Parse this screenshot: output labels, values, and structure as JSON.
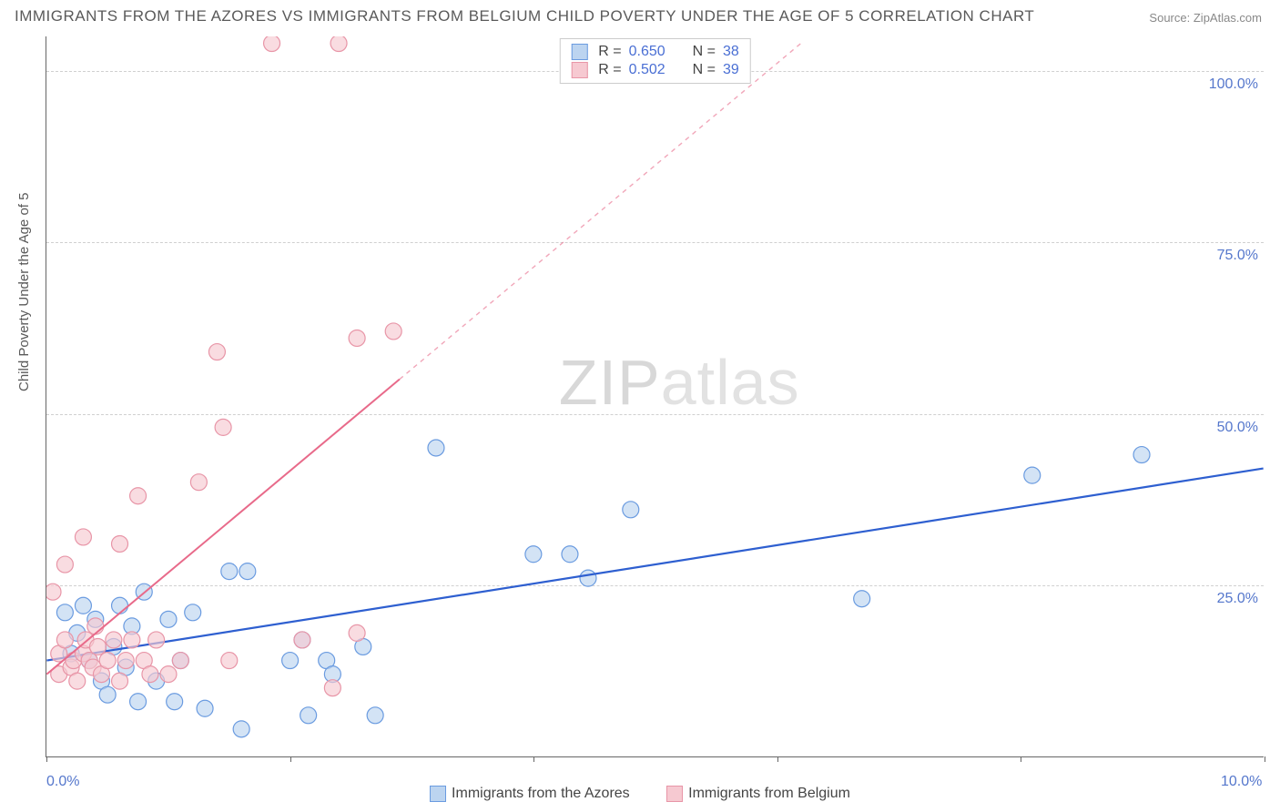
{
  "title": "IMMIGRANTS FROM THE AZORES VS IMMIGRANTS FROM BELGIUM CHILD POVERTY UNDER THE AGE OF 5 CORRELATION CHART",
  "source_label": "Source:",
  "source_value": "ZipAtlas.com",
  "y_axis_label": "Child Poverty Under the Age of 5",
  "watermark_a": "ZIP",
  "watermark_b": "atlas",
  "chart": {
    "type": "scatter",
    "xlim": [
      0,
      10
    ],
    "ylim": [
      0,
      105
    ],
    "x_ticks": [
      0,
      2,
      4,
      6,
      8,
      10
    ],
    "x_tick_labels": [
      "0.0%",
      "",
      "",
      "",
      "",
      "10.0%"
    ],
    "y_grid": [
      25,
      50,
      75,
      100
    ],
    "y_tick_labels": [
      "25.0%",
      "50.0%",
      "75.0%",
      "100.0%"
    ],
    "background_color": "#ffffff",
    "grid_color": "#d0d0d0",
    "axis_color": "#666666",
    "tick_label_color": "#5577cc",
    "marker_radius": 9,
    "series": [
      {
        "name": "Immigrants from the Azores",
        "fill_color": "#bcd4f0",
        "stroke_color": "#6a9be0",
        "fill_opacity": 0.65,
        "line_color": "#2e5fd0",
        "line_width": 2.2,
        "regression": {
          "x1": 0.0,
          "y1": 14,
          "x2": 10.0,
          "y2": 42
        },
        "r_label": "R =",
        "r_value": "0.650",
        "n_label": "N =",
        "n_value": "38",
        "points": [
          [
            0.15,
            21
          ],
          [
            0.2,
            15
          ],
          [
            0.25,
            18
          ],
          [
            0.3,
            22
          ],
          [
            0.35,
            14
          ],
          [
            0.4,
            20
          ],
          [
            0.45,
            11
          ],
          [
            0.5,
            9
          ],
          [
            0.55,
            16
          ],
          [
            0.6,
            22
          ],
          [
            0.65,
            13
          ],
          [
            0.7,
            19
          ],
          [
            0.75,
            8
          ],
          [
            0.8,
            24
          ],
          [
            0.9,
            11
          ],
          [
            1.0,
            20
          ],
          [
            1.05,
            8
          ],
          [
            1.1,
            14
          ],
          [
            1.2,
            21
          ],
          [
            1.3,
            7
          ],
          [
            1.5,
            27
          ],
          [
            1.6,
            4
          ],
          [
            1.65,
            27
          ],
          [
            2.0,
            14
          ],
          [
            2.1,
            17
          ],
          [
            2.15,
            6
          ],
          [
            2.3,
            14
          ],
          [
            2.35,
            12
          ],
          [
            2.6,
            16
          ],
          [
            2.7,
            6
          ],
          [
            3.2,
            45
          ],
          [
            4.0,
            29.5
          ],
          [
            4.3,
            29.5
          ],
          [
            4.45,
            26
          ],
          [
            4.8,
            36
          ],
          [
            6.7,
            23
          ],
          [
            8.1,
            41
          ],
          [
            9.0,
            44
          ]
        ]
      },
      {
        "name": "Immigrants from Belgium",
        "fill_color": "#f6c9d1",
        "stroke_color": "#e895a7",
        "fill_opacity": 0.65,
        "line_color": "#e86a8a",
        "line_width": 2.0,
        "regression": {
          "x1": 0.0,
          "y1": 12,
          "x2": 2.9,
          "y2": 55
        },
        "dashed_ext": {
          "x1": 2.9,
          "y1": 55,
          "x2": 6.2,
          "y2": 104
        },
        "r_label": "R =",
        "r_value": "0.502",
        "n_label": "N =",
        "n_value": "39",
        "points": [
          [
            0.05,
            24
          ],
          [
            0.1,
            15
          ],
          [
            0.1,
            12
          ],
          [
            0.15,
            28
          ],
          [
            0.15,
            17
          ],
          [
            0.2,
            13
          ],
          [
            0.22,
            14
          ],
          [
            0.25,
            11
          ],
          [
            0.3,
            15
          ],
          [
            0.3,
            32
          ],
          [
            0.32,
            17
          ],
          [
            0.35,
            14
          ],
          [
            0.38,
            13
          ],
          [
            0.4,
            19
          ],
          [
            0.42,
            16
          ],
          [
            0.45,
            12
          ],
          [
            0.5,
            14
          ],
          [
            0.55,
            17
          ],
          [
            0.6,
            31
          ],
          [
            0.6,
            11
          ],
          [
            0.65,
            14
          ],
          [
            0.7,
            17
          ],
          [
            0.75,
            38
          ],
          [
            0.8,
            14
          ],
          [
            0.85,
            12
          ],
          [
            0.9,
            17
          ],
          [
            1.0,
            12
          ],
          [
            1.1,
            14
          ],
          [
            1.25,
            40
          ],
          [
            1.4,
            59
          ],
          [
            1.5,
            14
          ],
          [
            1.45,
            48
          ],
          [
            1.85,
            104
          ],
          [
            2.1,
            17
          ],
          [
            2.35,
            10
          ],
          [
            2.4,
            104
          ],
          [
            2.55,
            61
          ],
          [
            2.55,
            18
          ],
          [
            2.85,
            62
          ]
        ]
      }
    ]
  },
  "legend_bottom": [
    {
      "label": "Immigrants from the Azores",
      "fill": "#bcd4f0",
      "stroke": "#6a9be0"
    },
    {
      "label": "Immigrants from Belgium",
      "fill": "#f6c9d1",
      "stroke": "#e895a7"
    }
  ]
}
